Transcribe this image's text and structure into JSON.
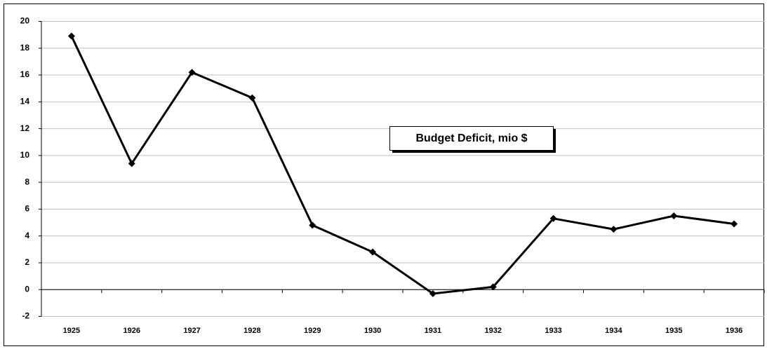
{
  "chart_data": {
    "type": "line",
    "title": "Budget Deficit, mio $",
    "categories": [
      "1925",
      "1926",
      "1927",
      "1928",
      "1929",
      "1930",
      "1931",
      "1932",
      "1933",
      "1934",
      "1935",
      "1936"
    ],
    "values": [
      18.9,
      9.4,
      16.2,
      14.3,
      4.8,
      2.8,
      -0.3,
      0.2,
      5.3,
      4.5,
      5.5,
      4.9
    ],
    "color": "#000000",
    "ylim": [
      -2,
      20
    ],
    "yticks": [
      -2,
      0,
      2,
      4,
      6,
      8,
      10,
      12,
      14,
      16,
      18,
      20
    ],
    "grid": true
  }
}
